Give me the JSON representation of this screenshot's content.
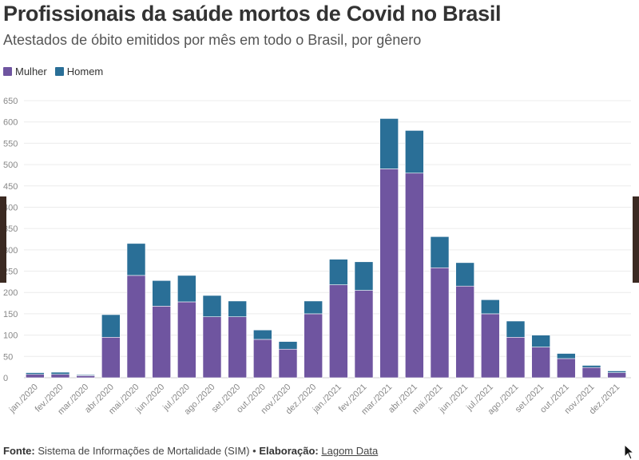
{
  "header": {
    "title": "Profissionais da saúde mortos de Covid no Brasil",
    "subtitle": "Atestados de óbito emitidos por mês em todo o Brasil, por gênero"
  },
  "legend": [
    {
      "label": "Mulher",
      "color": "#6f55a0"
    },
    {
      "label": "Homem",
      "color": "#2a6f97"
    }
  ],
  "footer": {
    "fonte_label": "Fonte:",
    "fonte_text": "Sistema de Informações de Mortalidade (SIM)",
    "bullet": "•",
    "elaboracao_label": "Elaboração:",
    "elaboracao_link": "Lagom Data"
  },
  "chart_data": {
    "type": "bar",
    "stacked": true,
    "categories": [
      "jan./2020",
      "fev./2020",
      "mar./2020",
      "abr./2020",
      "mai./2020",
      "jun./2020",
      "jul./2020",
      "ago./2020",
      "set./2020",
      "out./2020",
      "nov./2020",
      "dez./2020",
      "jan./2021",
      "fev./2021",
      "mar./2021",
      "abr./2021",
      "mai./2021",
      "jun./2021",
      "jul./2021",
      "ago./2021",
      "set./2021",
      "out./2021",
      "nov./2021",
      "dez./2021"
    ],
    "series": [
      {
        "name": "Mulher",
        "color": "#6f55a0",
        "values": [
          8,
          8,
          5,
          95,
          240,
          168,
          178,
          143,
          143,
          90,
          67,
          150,
          218,
          205,
          490,
          480,
          258,
          215,
          150,
          95,
          72,
          45,
          24,
          12
        ]
      },
      {
        "name": "Homem",
        "color": "#2a6f97",
        "values": [
          4,
          5,
          2,
          53,
          75,
          60,
          62,
          50,
          37,
          22,
          18,
          30,
          60,
          67,
          118,
          100,
          73,
          55,
          33,
          38,
          28,
          12,
          5,
          4
        ]
      }
    ],
    "ylim": [
      0,
      650
    ],
    "yticks": [
      0,
      50,
      100,
      150,
      200,
      250,
      300,
      350,
      400,
      450,
      500,
      550,
      600,
      650
    ],
    "grid": true,
    "legend_position": "top-left"
  }
}
